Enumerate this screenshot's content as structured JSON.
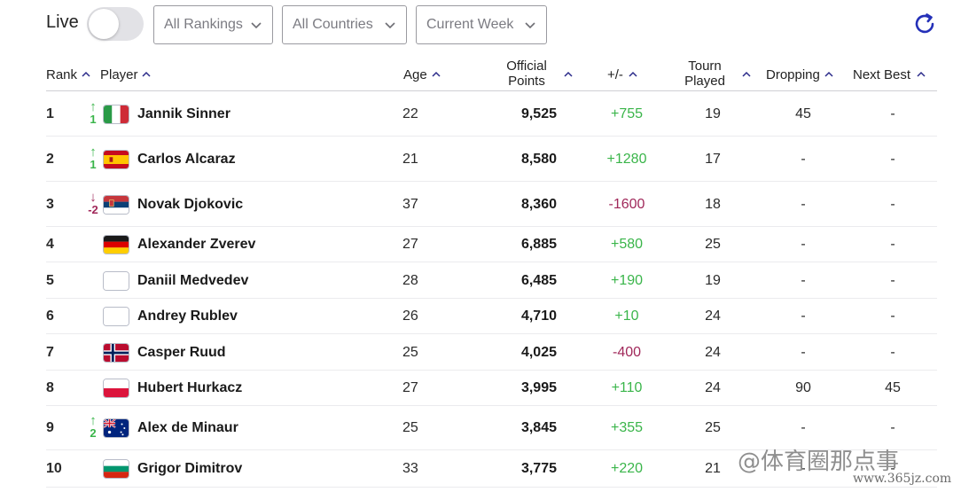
{
  "live": {
    "label": "Live",
    "toggle_on": false
  },
  "filters": {
    "rankings": "All Rankings",
    "countries": "All Countries",
    "period": "Current Week"
  },
  "icons": {
    "refresh": "refresh-icon",
    "sort": "sort-up-chevron-icon",
    "chevron": "chevron-down-icon"
  },
  "colors": {
    "positive": "#3ab54a",
    "negative": "#a0285a",
    "refresh": "#2430b8"
  },
  "columns": {
    "rank": "Rank",
    "player": "Player",
    "age": "Age",
    "points_1": "Official",
    "points_2": "Points",
    "change": "+/-",
    "tourn_1": "Tourn",
    "tourn_2": "Played",
    "dropping": "Dropping",
    "next_best": "Next Best"
  },
  "rows": [
    {
      "rank": "1",
      "move_dir": "up",
      "move": "1",
      "flag": "italy",
      "name": "Jannik Sinner",
      "age": "22",
      "points": "9,525",
      "change": "+755",
      "played": "19",
      "dropping": "45",
      "next_best": "-"
    },
    {
      "rank": "2",
      "move_dir": "up",
      "move": "1",
      "flag": "spain",
      "name": "Carlos Alcaraz",
      "age": "21",
      "points": "8,580",
      "change": "+1280",
      "played": "17",
      "dropping": "-",
      "next_best": "-"
    },
    {
      "rank": "3",
      "move_dir": "down",
      "move": "-2",
      "flag": "serbia",
      "name": "Novak Djokovic",
      "age": "37",
      "points": "8,360",
      "change": "-1600",
      "played": "18",
      "dropping": "-",
      "next_best": "-"
    },
    {
      "rank": "4",
      "move_dir": "",
      "move": "",
      "flag": "germany",
      "name": "Alexander Zverev",
      "age": "27",
      "points": "6,885",
      "change": "+580",
      "played": "25",
      "dropping": "-",
      "next_best": "-"
    },
    {
      "rank": "5",
      "move_dir": "",
      "move": "",
      "flag": "blank",
      "name": "Daniil Medvedev",
      "age": "28",
      "points": "6,485",
      "change": "+190",
      "played": "19",
      "dropping": "-",
      "next_best": "-"
    },
    {
      "rank": "6",
      "move_dir": "",
      "move": "",
      "flag": "blank",
      "name": "Andrey Rublev",
      "age": "26",
      "points": "4,710",
      "change": "+10",
      "played": "24",
      "dropping": "-",
      "next_best": "-"
    },
    {
      "rank": "7",
      "move_dir": "",
      "move": "",
      "flag": "norway",
      "name": "Casper Ruud",
      "age": "25",
      "points": "4,025",
      "change": "-400",
      "played": "24",
      "dropping": "-",
      "next_best": "-"
    },
    {
      "rank": "8",
      "move_dir": "",
      "move": "",
      "flag": "poland",
      "name": "Hubert Hurkacz",
      "age": "27",
      "points": "3,995",
      "change": "+110",
      "played": "24",
      "dropping": "90",
      "next_best": "45"
    },
    {
      "rank": "9",
      "move_dir": "up",
      "move": "2",
      "flag": "australia",
      "name": "Alex de Minaur",
      "age": "25",
      "points": "3,845",
      "change": "+355",
      "played": "25",
      "dropping": "-",
      "next_best": "-"
    },
    {
      "rank": "10",
      "move_dir": "",
      "move": "",
      "flag": "bulgaria",
      "name": "Grigor Dimitrov",
      "age": "33",
      "points": "3,775",
      "change": "+220",
      "played": "21",
      "dropping": "-",
      "next_best": "-"
    }
  ],
  "watermark": {
    "line1": "@体育圈那点事",
    "line2": "www.365jz.com"
  }
}
